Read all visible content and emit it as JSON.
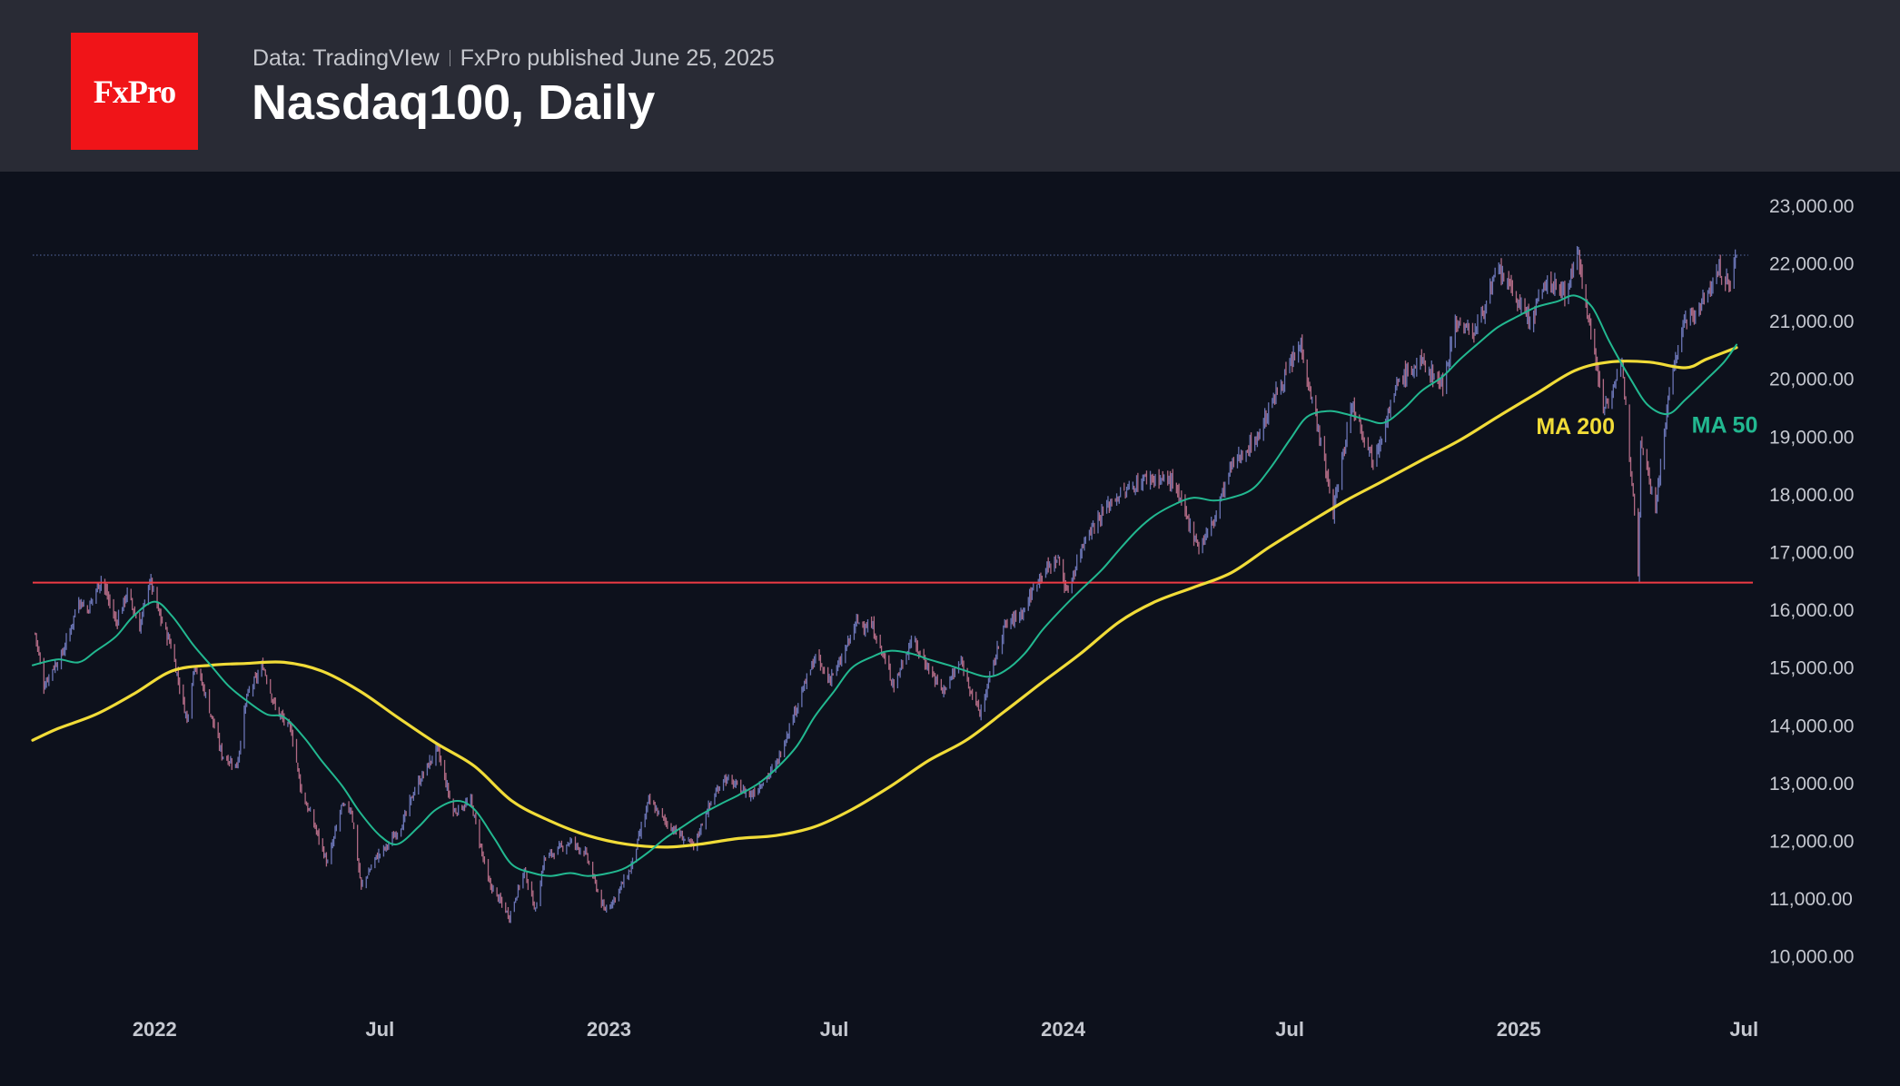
{
  "header": {
    "logo_text": "FxPro",
    "source": "Data: TradingVIew",
    "published": "FxPro published June 25, 2025",
    "title": "Nasdaq100, Daily"
  },
  "colors": {
    "background": "#0d111c",
    "header_bg": "#292b35",
    "logo_red": "#f01418",
    "ma200": "#f1dc38",
    "ma50": "#22b890",
    "support_line": "#ee3b44",
    "up_candle": "#6a74b4",
    "down_candle": "#b06a84",
    "dotted_level": "#4a5a8a"
  },
  "chart_data": {
    "type": "line",
    "title": "Nasdaq100, Daily",
    "ylim": [
      9400,
      23600
    ],
    "y_ticks": [
      {
        "value": 23000,
        "label": "23,000.00"
      },
      {
        "value": 22000,
        "label": "22,000.00"
      },
      {
        "value": 21000,
        "label": "21,000.00"
      },
      {
        "value": 20000,
        "label": "20,000.00"
      },
      {
        "value": 19000,
        "label": "19,000.00"
      },
      {
        "value": 18000,
        "label": "18,000.00"
      },
      {
        "value": 17000,
        "label": "17,000.00"
      },
      {
        "value": 16000,
        "label": "16,000.00"
      },
      {
        "value": 15000,
        "label": "15,000.00"
      },
      {
        "value": 14000,
        "label": "14,000.00"
      },
      {
        "value": 13000,
        "label": "13,000.00"
      },
      {
        "value": 12000,
        "label": "12,000.00"
      },
      {
        "value": 11000,
        "label": "11,000.00"
      },
      {
        "value": 10000,
        "label": "10,000.00"
      }
    ],
    "x_range": [
      "2021-09-25",
      "2025-07-01"
    ],
    "x_ticks": [
      {
        "date": "2022-01-01",
        "label": "2022"
      },
      {
        "date": "2022-07-01",
        "label": "Jul"
      },
      {
        "date": "2023-01-01",
        "label": "2023"
      },
      {
        "date": "2023-07-01",
        "label": "Jul"
      },
      {
        "date": "2024-01-01",
        "label": "2024"
      },
      {
        "date": "2024-07-01",
        "label": "Jul"
      },
      {
        "date": "2025-01-01",
        "label": "2025"
      },
      {
        "date": "2025-07-01",
        "label": "Jul"
      }
    ],
    "horizontal_levels": [
      {
        "name": "support",
        "value": 16480,
        "style": "solid"
      },
      {
        "name": "high",
        "value": 22150,
        "style": "dotted"
      }
    ],
    "price_path": [
      [
        "2021-09-27",
        15600
      ],
      [
        "2021-10-04",
        14700
      ],
      [
        "2021-10-11",
        15000
      ],
      [
        "2021-10-18",
        15200
      ],
      [
        "2021-10-25",
        15650
      ],
      [
        "2021-11-01",
        16200
      ],
      [
        "2021-11-08",
        16000
      ],
      [
        "2021-11-19",
        16550
      ],
      [
        "2021-12-01",
        15800
      ],
      [
        "2021-12-10",
        16300
      ],
      [
        "2021-12-20",
        15700
      ],
      [
        "2021-12-28",
        16550
      ],
      [
        "2022-01-05",
        15900
      ],
      [
        "2022-01-14",
        15400
      ],
      [
        "2022-01-27",
        14100
      ],
      [
        "2022-02-02",
        15100
      ],
      [
        "2022-02-10",
        14600
      ],
      [
        "2022-02-24",
        13500
      ],
      [
        "2022-03-08",
        13300
      ],
      [
        "2022-03-16",
        14500
      ],
      [
        "2022-03-29",
        15050
      ],
      [
        "2022-04-08",
        14300
      ],
      [
        "2022-04-21",
        13900
      ],
      [
        "2022-04-29",
        12850
      ],
      [
        "2022-05-09",
        12300
      ],
      [
        "2022-05-20",
        11600
      ],
      [
        "2022-05-31",
        12600
      ],
      [
        "2022-06-08",
        12550
      ],
      [
        "2022-06-16",
        11200
      ],
      [
        "2022-06-27",
        11700
      ],
      [
        "2022-07-06",
        11900
      ],
      [
        "2022-07-19",
        12300
      ],
      [
        "2022-07-29",
        12900
      ],
      [
        "2022-08-16",
        13600
      ],
      [
        "2022-08-29",
        12500
      ],
      [
        "2022-09-12",
        12700
      ],
      [
        "2022-09-26",
        11300
      ],
      [
        "2022-10-13",
        10700
      ],
      [
        "2022-10-25",
        11500
      ],
      [
        "2022-11-03",
        10800
      ],
      [
        "2022-11-10",
        11700
      ],
      [
        "2022-12-01",
        12000
      ],
      [
        "2022-12-13",
        11800
      ],
      [
        "2022-12-28",
        10800
      ],
      [
        "2023-01-05",
        11000
      ],
      [
        "2023-01-18",
        11500
      ],
      [
        "2023-02-02",
        12700
      ],
      [
        "2023-02-17",
        12300
      ],
      [
        "2023-03-10",
        11900
      ],
      [
        "2023-03-20",
        12500
      ],
      [
        "2023-04-03",
        13100
      ],
      [
        "2023-04-25",
        12800
      ],
      [
        "2023-05-15",
        13300
      ],
      [
        "2023-05-31",
        14300
      ],
      [
        "2023-06-16",
        15200
      ],
      [
        "2023-06-26",
        14800
      ],
      [
        "2023-07-05",
        15050
      ],
      [
        "2023-07-19",
        15800
      ],
      [
        "2023-08-01",
        15700
      ],
      [
        "2023-08-18",
        14700
      ],
      [
        "2023-09-01",
        15500
      ],
      [
        "2023-09-26",
        14600
      ],
      [
        "2023-10-11",
        15100
      ],
      [
        "2023-10-26",
        14200
      ],
      [
        "2023-11-14",
        15700
      ],
      [
        "2023-11-30",
        16000
      ],
      [
        "2023-12-13",
        16600
      ],
      [
        "2023-12-28",
        16900
      ],
      [
        "2024-01-04",
        16300
      ],
      [
        "2024-01-19",
        17300
      ],
      [
        "2024-02-09",
        17900
      ],
      [
        "2024-03-08",
        18300
      ],
      [
        "2024-03-28",
        18250
      ],
      [
        "2024-04-19",
        17100
      ],
      [
        "2024-04-30",
        17500
      ],
      [
        "2024-05-15",
        18500
      ],
      [
        "2024-06-05",
        19000
      ],
      [
        "2024-06-20",
        19750
      ],
      [
        "2024-07-10",
        20600
      ],
      [
        "2024-07-25",
        19000
      ],
      [
        "2024-08-05",
        17700
      ],
      [
        "2024-08-20",
        19600
      ],
      [
        "2024-09-06",
        18600
      ],
      [
        "2024-09-27",
        20000
      ],
      [
        "2024-10-15",
        20300
      ],
      [
        "2024-11-01",
        19900
      ],
      [
        "2024-11-11",
        21000
      ],
      [
        "2024-11-26",
        20800
      ],
      [
        "2024-12-16",
        21900
      ],
      [
        "2025-01-10",
        21000
      ],
      [
        "2025-01-24",
        21700
      ],
      [
        "2025-02-07",
        21500
      ],
      [
        "2025-02-18",
        22150
      ],
      [
        "2025-03-10",
        19500
      ],
      [
        "2025-03-25",
        20200
      ],
      [
        "2025-04-04",
        17800
      ],
      [
        "2025-04-07",
        16550
      ],
      [
        "2025-04-09",
        19000
      ],
      [
        "2025-04-21",
        17800
      ],
      [
        "2025-05-02",
        19800
      ],
      [
        "2025-05-12",
        20900
      ],
      [
        "2025-05-28",
        21300
      ],
      [
        "2025-06-11",
        21900
      ],
      [
        "2025-06-20",
        21600
      ],
      [
        "2025-06-25",
        22200
      ]
    ],
    "series": [
      {
        "name": "MA 200",
        "color": "#f1dc38",
        "points": [
          [
            "2021-09-25",
            13750
          ],
          [
            "2021-10-15",
            13950
          ],
          [
            "2021-11-15",
            14200
          ],
          [
            "2021-12-15",
            14550
          ],
          [
            "2022-01-15",
            14950
          ],
          [
            "2022-02-15",
            15050
          ],
          [
            "2022-03-15",
            15080
          ],
          [
            "2022-04-15",
            15100
          ],
          [
            "2022-05-15",
            14950
          ],
          [
            "2022-06-15",
            14600
          ],
          [
            "2022-07-15",
            14150
          ],
          [
            "2022-08-15",
            13700
          ],
          [
            "2022-09-15",
            13300
          ],
          [
            "2022-10-15",
            12700
          ],
          [
            "2022-11-15",
            12350
          ],
          [
            "2022-12-15",
            12100
          ],
          [
            "2023-01-15",
            11950
          ],
          [
            "2023-02-15",
            11900
          ],
          [
            "2023-03-15",
            11950
          ],
          [
            "2023-04-15",
            12050
          ],
          [
            "2023-05-15",
            12100
          ],
          [
            "2023-06-15",
            12250
          ],
          [
            "2023-07-15",
            12550
          ],
          [
            "2023-08-15",
            12950
          ],
          [
            "2023-09-15",
            13400
          ],
          [
            "2023-10-15",
            13750
          ],
          [
            "2023-11-15",
            14250
          ],
          [
            "2023-12-15",
            14750
          ],
          [
            "2024-01-15",
            15250
          ],
          [
            "2024-02-15",
            15800
          ],
          [
            "2024-03-15",
            16150
          ],
          [
            "2024-04-15",
            16400
          ],
          [
            "2024-05-15",
            16650
          ],
          [
            "2024-06-15",
            17100
          ],
          [
            "2024-07-15",
            17500
          ],
          [
            "2024-08-15",
            17900
          ],
          [
            "2024-09-15",
            18250
          ],
          [
            "2024-10-15",
            18600
          ],
          [
            "2024-11-15",
            18950
          ],
          [
            "2024-12-15",
            19350
          ],
          [
            "2025-01-15",
            19750
          ],
          [
            "2025-02-15",
            20150
          ],
          [
            "2025-03-15",
            20300
          ],
          [
            "2025-04-15",
            20300
          ],
          [
            "2025-05-15",
            20200
          ],
          [
            "2025-06-01",
            20350
          ],
          [
            "2025-06-25",
            20550
          ]
        ]
      },
      {
        "name": "MA 50",
        "color": "#22b890",
        "points": [
          [
            "2021-09-25",
            15050
          ],
          [
            "2021-10-15",
            15150
          ],
          [
            "2021-11-01",
            15100
          ],
          [
            "2021-11-15",
            15300
          ],
          [
            "2021-12-01",
            15550
          ],
          [
            "2021-12-15",
            15900
          ],
          [
            "2022-01-01",
            16150
          ],
          [
            "2022-01-15",
            15900
          ],
          [
            "2022-02-01",
            15400
          ],
          [
            "2022-02-15",
            15050
          ],
          [
            "2022-03-01",
            14700
          ],
          [
            "2022-03-15",
            14450
          ],
          [
            "2022-04-01",
            14200
          ],
          [
            "2022-04-15",
            14150
          ],
          [
            "2022-05-01",
            13800
          ],
          [
            "2022-05-15",
            13400
          ],
          [
            "2022-06-01",
            12950
          ],
          [
            "2022-06-15",
            12500
          ],
          [
            "2022-07-01",
            12100
          ],
          [
            "2022-07-15",
            11950
          ],
          [
            "2022-08-01",
            12250
          ],
          [
            "2022-08-15",
            12550
          ],
          [
            "2022-09-01",
            12700
          ],
          [
            "2022-09-15",
            12550
          ],
          [
            "2022-10-01",
            12050
          ],
          [
            "2022-10-15",
            11600
          ],
          [
            "2022-11-01",
            11450
          ],
          [
            "2022-11-15",
            11400
          ],
          [
            "2022-12-01",
            11450
          ],
          [
            "2022-12-15",
            11400
          ],
          [
            "2023-01-01",
            11450
          ],
          [
            "2023-01-15",
            11550
          ],
          [
            "2023-02-01",
            11800
          ],
          [
            "2023-02-15",
            12050
          ],
          [
            "2023-03-01",
            12250
          ],
          [
            "2023-03-15",
            12450
          ],
          [
            "2023-04-01",
            12650
          ],
          [
            "2023-04-15",
            12800
          ],
          [
            "2023-05-01",
            13000
          ],
          [
            "2023-05-15",
            13250
          ],
          [
            "2023-06-01",
            13650
          ],
          [
            "2023-06-15",
            14150
          ],
          [
            "2023-07-01",
            14600
          ],
          [
            "2023-07-15",
            15000
          ],
          [
            "2023-08-01",
            15200
          ],
          [
            "2023-08-15",
            15300
          ],
          [
            "2023-09-01",
            15250
          ],
          [
            "2023-09-15",
            15150
          ],
          [
            "2023-10-01",
            15050
          ],
          [
            "2023-10-15",
            14950
          ],
          [
            "2023-11-01",
            14850
          ],
          [
            "2023-11-15",
            14950
          ],
          [
            "2023-12-01",
            15250
          ],
          [
            "2023-12-15",
            15650
          ],
          [
            "2024-01-01",
            16050
          ],
          [
            "2024-01-15",
            16350
          ],
          [
            "2024-02-01",
            16700
          ],
          [
            "2024-02-15",
            17050
          ],
          [
            "2024-03-01",
            17400
          ],
          [
            "2024-03-15",
            17650
          ],
          [
            "2024-04-01",
            17850
          ],
          [
            "2024-04-15",
            17950
          ],
          [
            "2024-05-01",
            17900
          ],
          [
            "2024-05-15",
            17950
          ],
          [
            "2024-06-01",
            18100
          ],
          [
            "2024-06-15",
            18450
          ],
          [
            "2024-07-01",
            18950
          ],
          [
            "2024-07-15",
            19350
          ],
          [
            "2024-08-01",
            19450
          ],
          [
            "2024-08-15",
            19400
          ],
          [
            "2024-09-01",
            19300
          ],
          [
            "2024-09-15",
            19250
          ],
          [
            "2024-10-01",
            19500
          ],
          [
            "2024-10-15",
            19800
          ],
          [
            "2024-11-01",
            20050
          ],
          [
            "2024-11-15",
            20350
          ],
          [
            "2024-12-01",
            20650
          ],
          [
            "2024-12-15",
            20900
          ],
          [
            "2025-01-01",
            21100
          ],
          [
            "2025-01-15",
            21250
          ],
          [
            "2025-02-01",
            21350
          ],
          [
            "2025-02-15",
            21450
          ],
          [
            "2025-03-01",
            21250
          ],
          [
            "2025-03-15",
            20650
          ],
          [
            "2025-04-01",
            20000
          ],
          [
            "2025-04-15",
            19550
          ],
          [
            "2025-05-01",
            19400
          ],
          [
            "2025-05-15",
            19650
          ],
          [
            "2025-06-01",
            20000
          ],
          [
            "2025-06-15",
            20300
          ],
          [
            "2025-06-25",
            20600
          ]
        ]
      }
    ],
    "annotations": [
      {
        "text": "MA 200",
        "color": "#f1dc38",
        "date": "2025-01-15",
        "value": 19050
      },
      {
        "text": "MA 50",
        "color": "#22b890",
        "date": "2025-05-20",
        "value": 19080
      }
    ],
    "grid": false,
    "legend": "none"
  }
}
